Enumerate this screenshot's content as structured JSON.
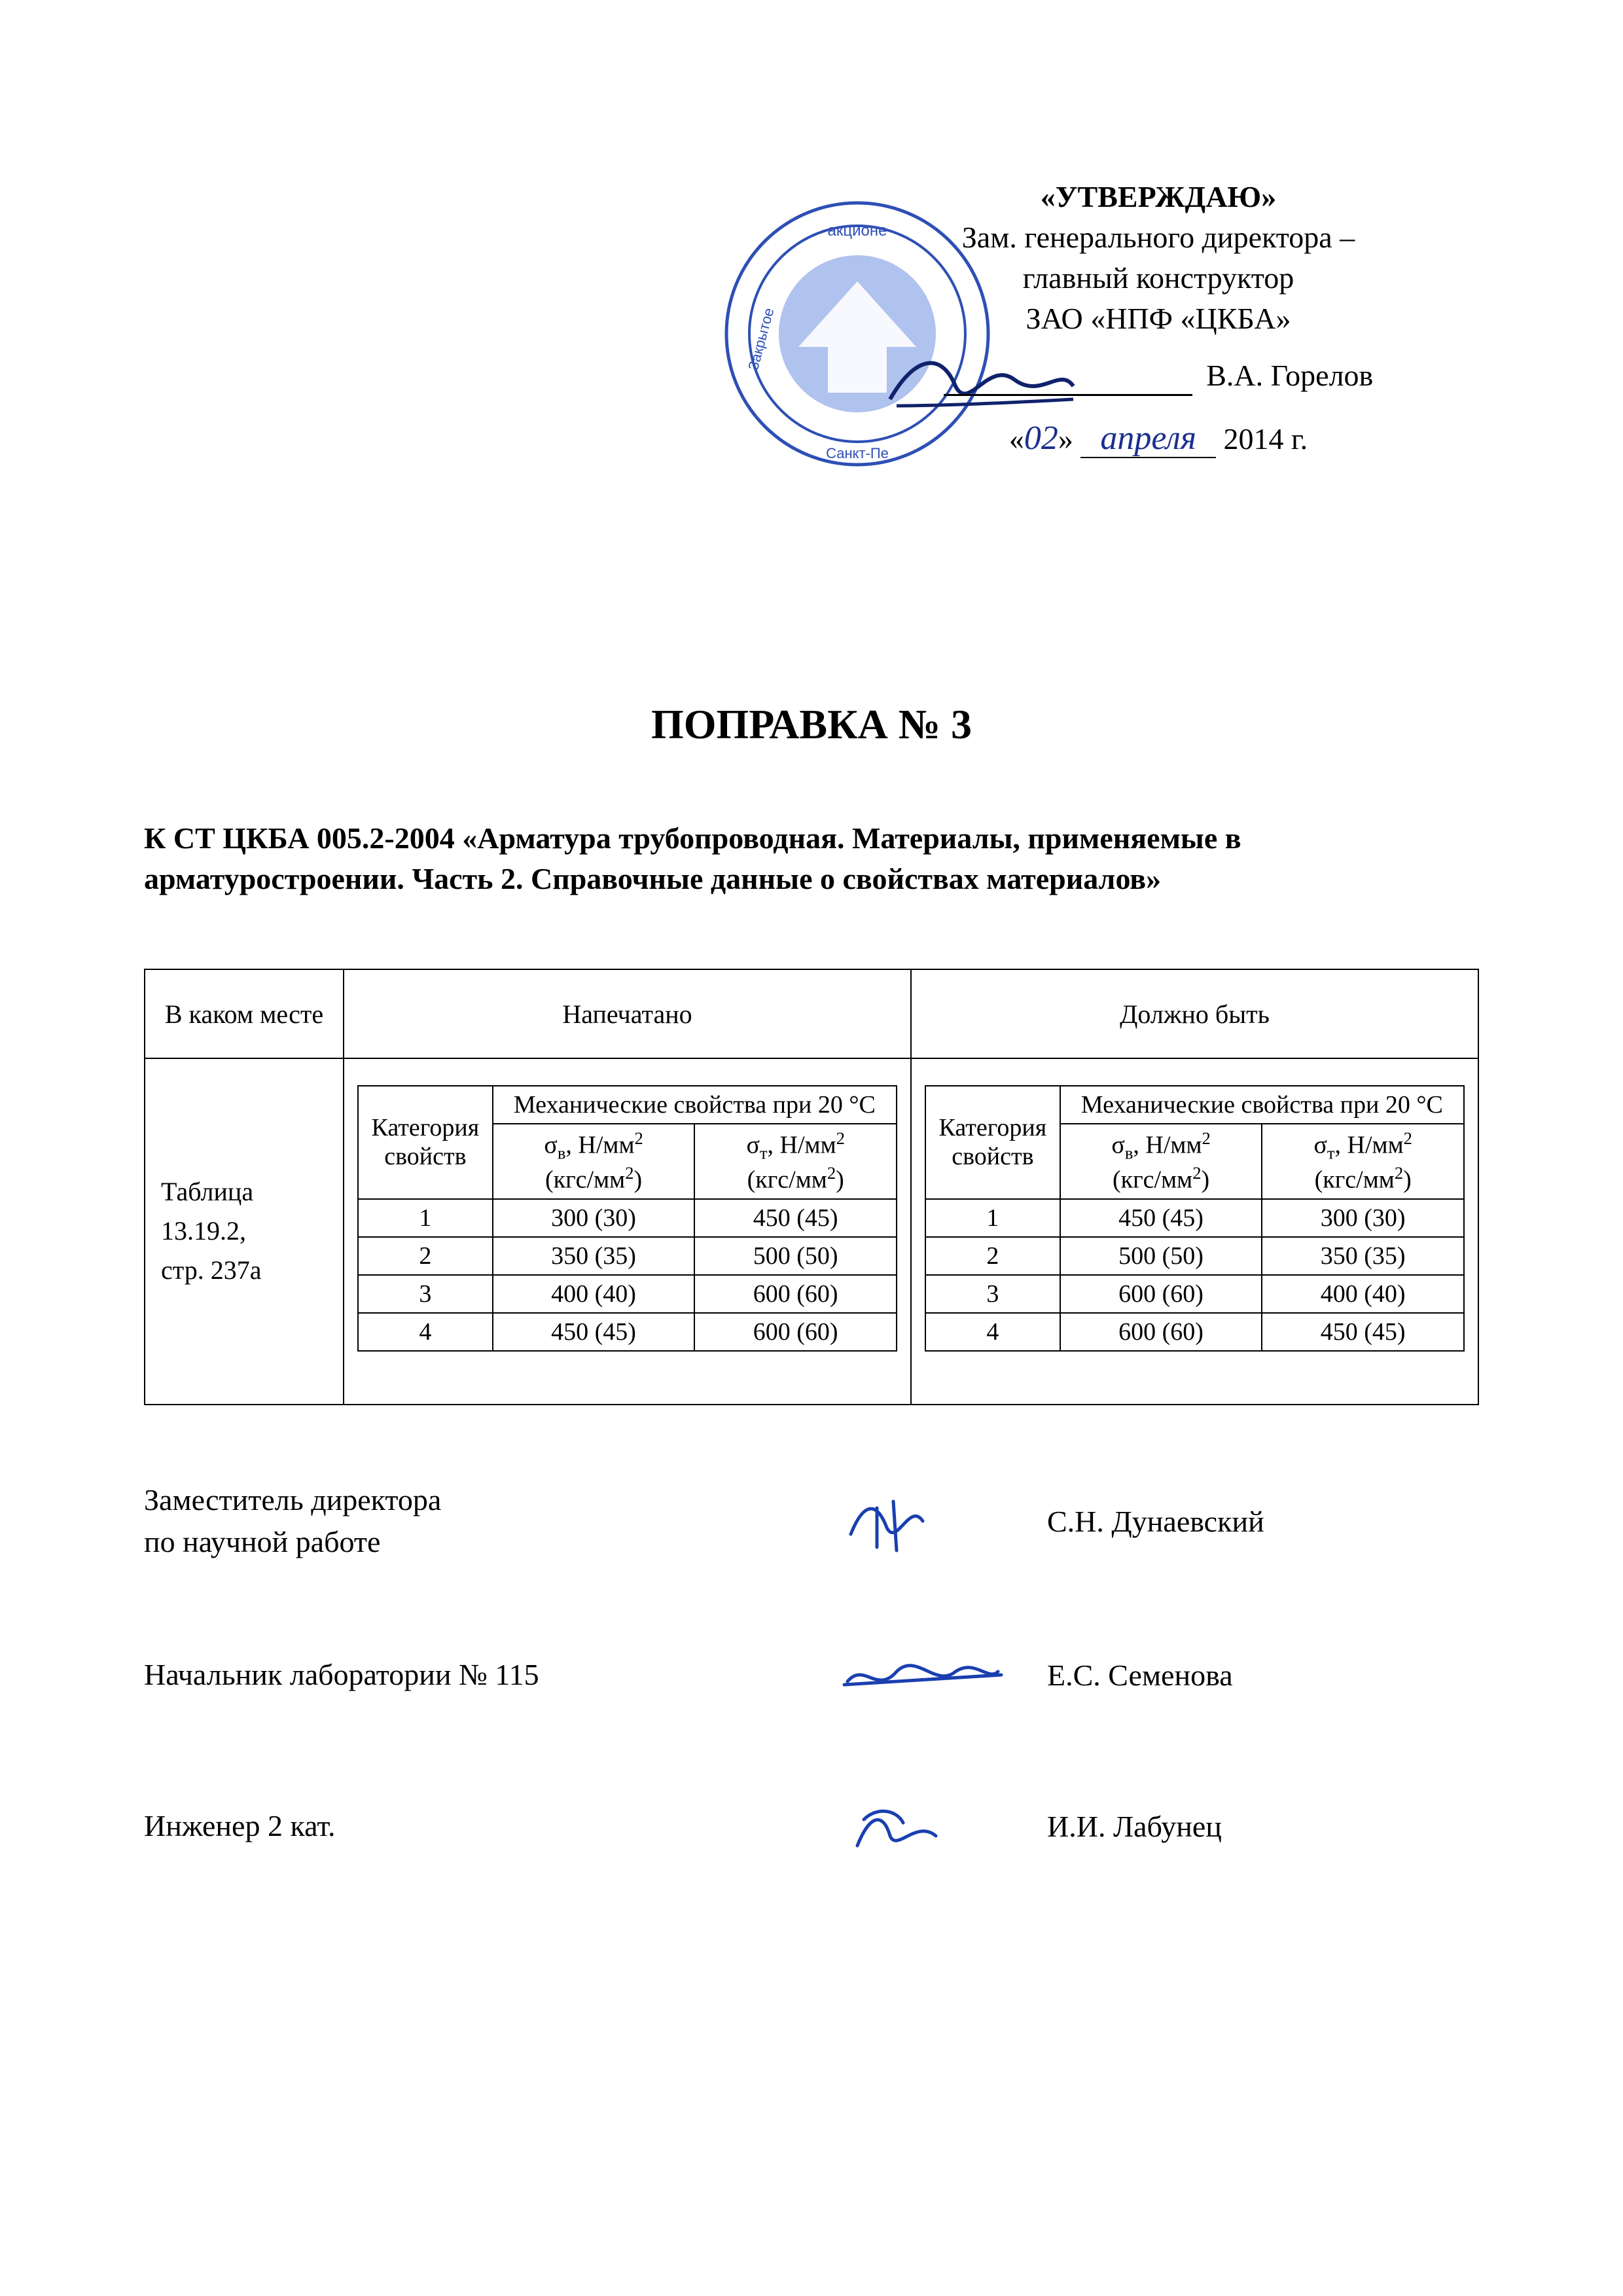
{
  "approval": {
    "title": "«УТВЕРЖДАЮ»",
    "line1": "Зам. генерального директора –",
    "line2": "главный конструктор",
    "line3": "ЗАО «НПФ «ЦКБА»",
    "name": "В.А. Горелов",
    "date_day_hand": "02",
    "date_month_hand": "апреля",
    "date_year": "2014 г.",
    "stamp_outer_color": "#2e4fb5",
    "stamp_inner_color": "#6f8fe0",
    "signature_color": "#10226b"
  },
  "title": "ПОПРАВКА № 3",
  "subtitle": "К СТ ЦКБА 005.2-2004 «Арматура трубопроводная. Материалы, применяемые в арматуростроении. Часть 2. Справочные данные о свойствах материалов»",
  "table": {
    "head_location": "В каком месте",
    "head_printed": "Напечатано",
    "head_should": "Должно быть",
    "location_text": "Таблица 13.19.2, стр. 237а",
    "inner_headers": {
      "category": "Категория свойств",
      "mech": "Механические свойства при 20 °С",
      "sigma_v_html": "σ<span class=\"sub\">в</span>, Н/мм<span class=\"sup\">2</span><br>(кгс/мм<span class=\"sup\">2</span>)",
      "sigma_t_html": "σ<span class=\"sub\">т</span>, Н/мм<span class=\"sup\">2</span><br>(кгс/мм<span class=\"sup\">2</span>)"
    },
    "printed": {
      "rows": [
        {
          "cat": "1",
          "v": "300 (30)",
          "t": "450 (45)"
        },
        {
          "cat": "2",
          "v": "350 (35)",
          "t": "500 (50)"
        },
        {
          "cat": "3",
          "v": "400 (40)",
          "t": "600 (60)"
        },
        {
          "cat": "4",
          "v": "450 (45)",
          "t": "600 (60)"
        }
      ]
    },
    "should": {
      "rows": [
        {
          "cat": "1",
          "v": "450 (45)",
          "t": "300 (30)"
        },
        {
          "cat": "2",
          "v": "500 (50)",
          "t": "350 (35)"
        },
        {
          "cat": "3",
          "v": "600 (60)",
          "t": "400 (40)"
        },
        {
          "cat": "4",
          "v": "600 (60)",
          "t": "450 (45)"
        }
      ]
    }
  },
  "signers": [
    {
      "role": "Заместитель директора<br>по научной работе",
      "name": "С.Н. Дунаевский"
    },
    {
      "role": "Начальник лаборатории № 115",
      "name": "Е.С. Семенова"
    },
    {
      "role": "Инженер 2 кат.",
      "name": "И.И. Лабунец"
    }
  ],
  "colors": {
    "text": "#000000",
    "border": "#000000",
    "background": "#ffffff",
    "signature_ink": "#1a3fb0"
  }
}
